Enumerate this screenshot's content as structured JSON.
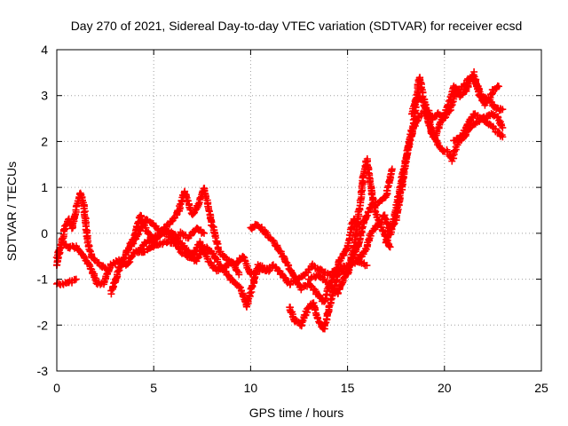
{
  "chart_data": {
    "type": "scatter",
    "title": "Day 270 of 2021, Sidereal Day-to-day VTEC variation (SDTVAR) for receiver ecsd",
    "xlabel": "GPS time / hours",
    "ylabel": "SDTVAR / TECUs",
    "xlim": [
      0,
      25
    ],
    "ylim": [
      -3,
      4
    ],
    "x_ticks": [
      "0",
      "5",
      "10",
      "15",
      "20",
      "25"
    ],
    "y_ticks": [
      "-3",
      "-2",
      "-1",
      "0",
      "1",
      "2",
      "3",
      "4"
    ],
    "grid": true,
    "marker": "plus",
    "series": [
      {
        "color": "#ff0000",
        "tracks": [
          [
            [
              0.0,
              -1.1
            ],
            [
              0.5,
              -1.1
            ],
            [
              1.0,
              -1.0
            ]
          ],
          [
            [
              0.0,
              -0.7
            ],
            [
              0.2,
              -0.3
            ],
            [
              0.4,
              0.1
            ],
            [
              0.6,
              0.3
            ],
            [
              0.8,
              0.1
            ],
            [
              1.0,
              0.5
            ],
            [
              1.2,
              0.9
            ],
            [
              1.4,
              0.6
            ],
            [
              1.6,
              -0.2
            ],
            [
              1.8,
              -0.5
            ],
            [
              2.0,
              -0.6
            ],
            [
              2.3,
              -0.7
            ],
            [
              2.6,
              -0.8
            ]
          ],
          [
            [
              0.0,
              -0.5
            ],
            [
              0.3,
              -0.2
            ],
            [
              0.6,
              -0.3
            ],
            [
              1.0,
              -0.3
            ],
            [
              1.4,
              -0.5
            ],
            [
              1.8,
              -0.8
            ],
            [
              2.1,
              -1.1
            ],
            [
              2.4,
              -1.1
            ],
            [
              2.8,
              -0.7
            ],
            [
              3.2,
              -0.6
            ],
            [
              3.6,
              -0.7
            ],
            [
              4.0,
              -0.4
            ],
            [
              4.5,
              -0.4
            ],
            [
              5.0,
              -0.3
            ],
            [
              5.5,
              -0.2
            ],
            [
              6.0,
              -0.2
            ],
            [
              6.4,
              0.0
            ],
            [
              6.8,
              -0.1
            ],
            [
              7.2,
              0.1
            ],
            [
              7.6,
              0.0
            ]
          ],
          [
            [
              2.8,
              -1.3
            ],
            [
              3.2,
              -0.8
            ],
            [
              3.6,
              -0.4
            ],
            [
              4.0,
              -0.1
            ],
            [
              4.3,
              0.4
            ],
            [
              4.6,
              0.1
            ],
            [
              5.0,
              -0.2
            ],
            [
              5.5,
              0.1
            ],
            [
              6.0,
              0.0
            ],
            [
              6.3,
              -0.2
            ],
            [
              6.6,
              -0.3
            ],
            [
              7.0,
              -0.5
            ],
            [
              7.4,
              -0.2
            ],
            [
              7.8,
              -0.6
            ],
            [
              8.2,
              -0.8
            ],
            [
              8.6,
              -0.8
            ],
            [
              9.0,
              -0.6
            ],
            [
              9.4,
              -0.9
            ]
          ],
          [
            [
              3.8,
              -0.3
            ],
            [
              4.2,
              0.0
            ],
            [
              4.6,
              0.3
            ],
            [
              5.0,
              0.2
            ],
            [
              5.4,
              0.0
            ],
            [
              5.8,
              0.2
            ],
            [
              6.2,
              0.4
            ],
            [
              6.6,
              0.9
            ],
            [
              7.0,
              0.4
            ],
            [
              7.3,
              0.6
            ],
            [
              7.6,
              1.0
            ],
            [
              8.0,
              0.2
            ],
            [
              8.4,
              -0.4
            ],
            [
              8.8,
              -0.6
            ],
            [
              9.2,
              -0.7
            ],
            [
              9.6,
              -0.5
            ],
            [
              10.0,
              -0.9
            ],
            [
              10.5,
              -0.8
            ],
            [
              11.0,
              -0.8
            ]
          ],
          [
            [
              4.2,
              -0.4
            ],
            [
              4.6,
              -0.2
            ],
            [
              5.0,
              -0.1
            ],
            [
              5.5,
              0.0
            ],
            [
              6.0,
              -0.1
            ],
            [
              6.4,
              -0.4
            ],
            [
              6.8,
              -0.5
            ],
            [
              7.2,
              -0.6
            ],
            [
              7.6,
              -0.3
            ],
            [
              8.0,
              -0.4
            ],
            [
              8.4,
              -0.7
            ],
            [
              8.8,
              -0.9
            ],
            [
              9.2,
              -1.1
            ],
            [
              9.5,
              -1.2
            ],
            [
              9.8,
              -1.6
            ],
            [
              10.0,
              -1.3
            ],
            [
              10.4,
              -0.7
            ],
            [
              10.8,
              -0.8
            ],
            [
              11.2,
              -0.7
            ],
            [
              11.6,
              -0.9
            ],
            [
              12.0,
              -1.1
            ],
            [
              12.4,
              -1.0
            ],
            [
              12.8,
              -0.9
            ],
            [
              13.2,
              -0.7
            ],
            [
              13.6,
              -0.8
            ],
            [
              14.0,
              -0.9
            ],
            [
              14.5,
              -0.8
            ],
            [
              15.0,
              -0.7
            ],
            [
              15.5,
              -0.6
            ],
            [
              16.0,
              -0.7
            ]
          ],
          [
            [
              10.0,
              0.1
            ],
            [
              10.3,
              0.2
            ],
            [
              10.6,
              0.1
            ],
            [
              11.0,
              -0.1
            ],
            [
              11.4,
              -0.3
            ],
            [
              11.8,
              -0.6
            ],
            [
              12.2,
              -0.9
            ],
            [
              12.6,
              -1.2
            ],
            [
              13.0,
              -1.1
            ],
            [
              13.4,
              -1.3
            ],
            [
              13.8,
              -1.5
            ],
            [
              14.0,
              -1.2
            ],
            [
              14.3,
              -0.9
            ],
            [
              14.6,
              -0.6
            ],
            [
              15.0,
              -0.3
            ],
            [
              15.3,
              0.3
            ],
            [
              15.6,
              0.2
            ]
          ],
          [
            [
              12.0,
              -1.6
            ],
            [
              12.3,
              -1.9
            ],
            [
              12.6,
              -2.0
            ],
            [
              12.9,
              -1.7
            ],
            [
              13.2,
              -1.5
            ],
            [
              13.5,
              -1.9
            ],
            [
              13.8,
              -2.1
            ],
            [
              14.0,
              -1.7
            ],
            [
              14.3,
              -1.2
            ],
            [
              14.6,
              -0.8
            ],
            [
              15.0,
              -0.9
            ],
            [
              15.3,
              -0.5
            ],
            [
              15.6,
              -0.2
            ],
            [
              15.8,
              0.2
            ],
            [
              16.2,
              0.6
            ],
            [
              16.6,
              0.7
            ],
            [
              17.0,
              0.8
            ],
            [
              17.3,
              1.4
            ]
          ],
          [
            [
              13.0,
              -1.0
            ],
            [
              13.5,
              -0.9
            ],
            [
              14.0,
              -1.1
            ],
            [
              14.5,
              -1.3
            ],
            [
              15.0,
              -0.8
            ],
            [
              15.3,
              -0.4
            ],
            [
              15.6,
              0.5
            ],
            [
              15.8,
              1.2
            ],
            [
              16.0,
              1.6
            ],
            [
              16.2,
              1.0
            ],
            [
              16.4,
              0.5
            ],
            [
              16.8,
              0.1
            ],
            [
              17.2,
              -0.3
            ]
          ],
          [
            [
              15.5,
              -0.6
            ],
            [
              15.9,
              -0.4
            ],
            [
              16.2,
              0.0
            ],
            [
              16.6,
              0.2
            ],
            [
              16.9,
              0.4
            ],
            [
              17.2,
              0.0
            ],
            [
              17.5,
              0.3
            ],
            [
              17.8,
              1.0
            ],
            [
              18.1,
              1.8
            ],
            [
              18.4,
              2.4
            ],
            [
              18.7,
              3.4
            ],
            [
              19.0,
              2.8
            ],
            [
              19.3,
              2.2
            ],
            [
              19.6,
              2.0
            ],
            [
              19.9,
              1.8
            ],
            [
              20.1,
              1.8
            ],
            [
              20.4,
              1.6
            ],
            [
              20.7,
              2.0
            ],
            [
              21.0,
              2.1
            ],
            [
              21.3,
              2.3
            ],
            [
              21.6,
              2.4
            ],
            [
              22.0,
              2.5
            ],
            [
              22.4,
              2.6
            ],
            [
              22.8,
              2.5
            ],
            [
              23.0,
              2.3
            ]
          ],
          [
            [
              17.0,
              -0.2
            ],
            [
              17.4,
              0.3
            ],
            [
              17.8,
              1.2
            ],
            [
              18.2,
              2.0
            ],
            [
              18.5,
              2.4
            ],
            [
              18.8,
              2.6
            ],
            [
              19.1,
              2.7
            ],
            [
              19.4,
              2.5
            ],
            [
              19.7,
              2.6
            ],
            [
              20.0,
              2.5
            ],
            [
              20.3,
              2.7
            ],
            [
              20.6,
              3.1
            ],
            [
              21.0,
              3.2
            ],
            [
              21.3,
              3.4
            ],
            [
              21.6,
              3.3
            ],
            [
              21.9,
              3.0
            ],
            [
              22.3,
              2.9
            ],
            [
              22.7,
              2.7
            ],
            [
              23.0,
              2.7
            ]
          ],
          [
            [
              18.3,
              2.6
            ],
            [
              18.6,
              3.0
            ],
            [
              18.9,
              2.9
            ],
            [
              19.2,
              2.4
            ],
            [
              19.5,
              2.1
            ],
            [
              19.8,
              2.4
            ],
            [
              20.2,
              2.8
            ],
            [
              20.5,
              3.2
            ],
            [
              20.8,
              3.0
            ],
            [
              21.1,
              3.1
            ],
            [
              21.5,
              3.5
            ],
            [
              21.8,
              3.0
            ],
            [
              22.1,
              2.8
            ],
            [
              22.5,
              3.1
            ],
            [
              22.8,
              3.2
            ]
          ],
          [
            [
              20.5,
              2.0
            ],
            [
              21.0,
              2.2
            ],
            [
              21.5,
              2.6
            ],
            [
              22.0,
              2.5
            ],
            [
              22.5,
              2.3
            ],
            [
              23.0,
              2.1
            ]
          ]
        ]
      }
    ]
  }
}
